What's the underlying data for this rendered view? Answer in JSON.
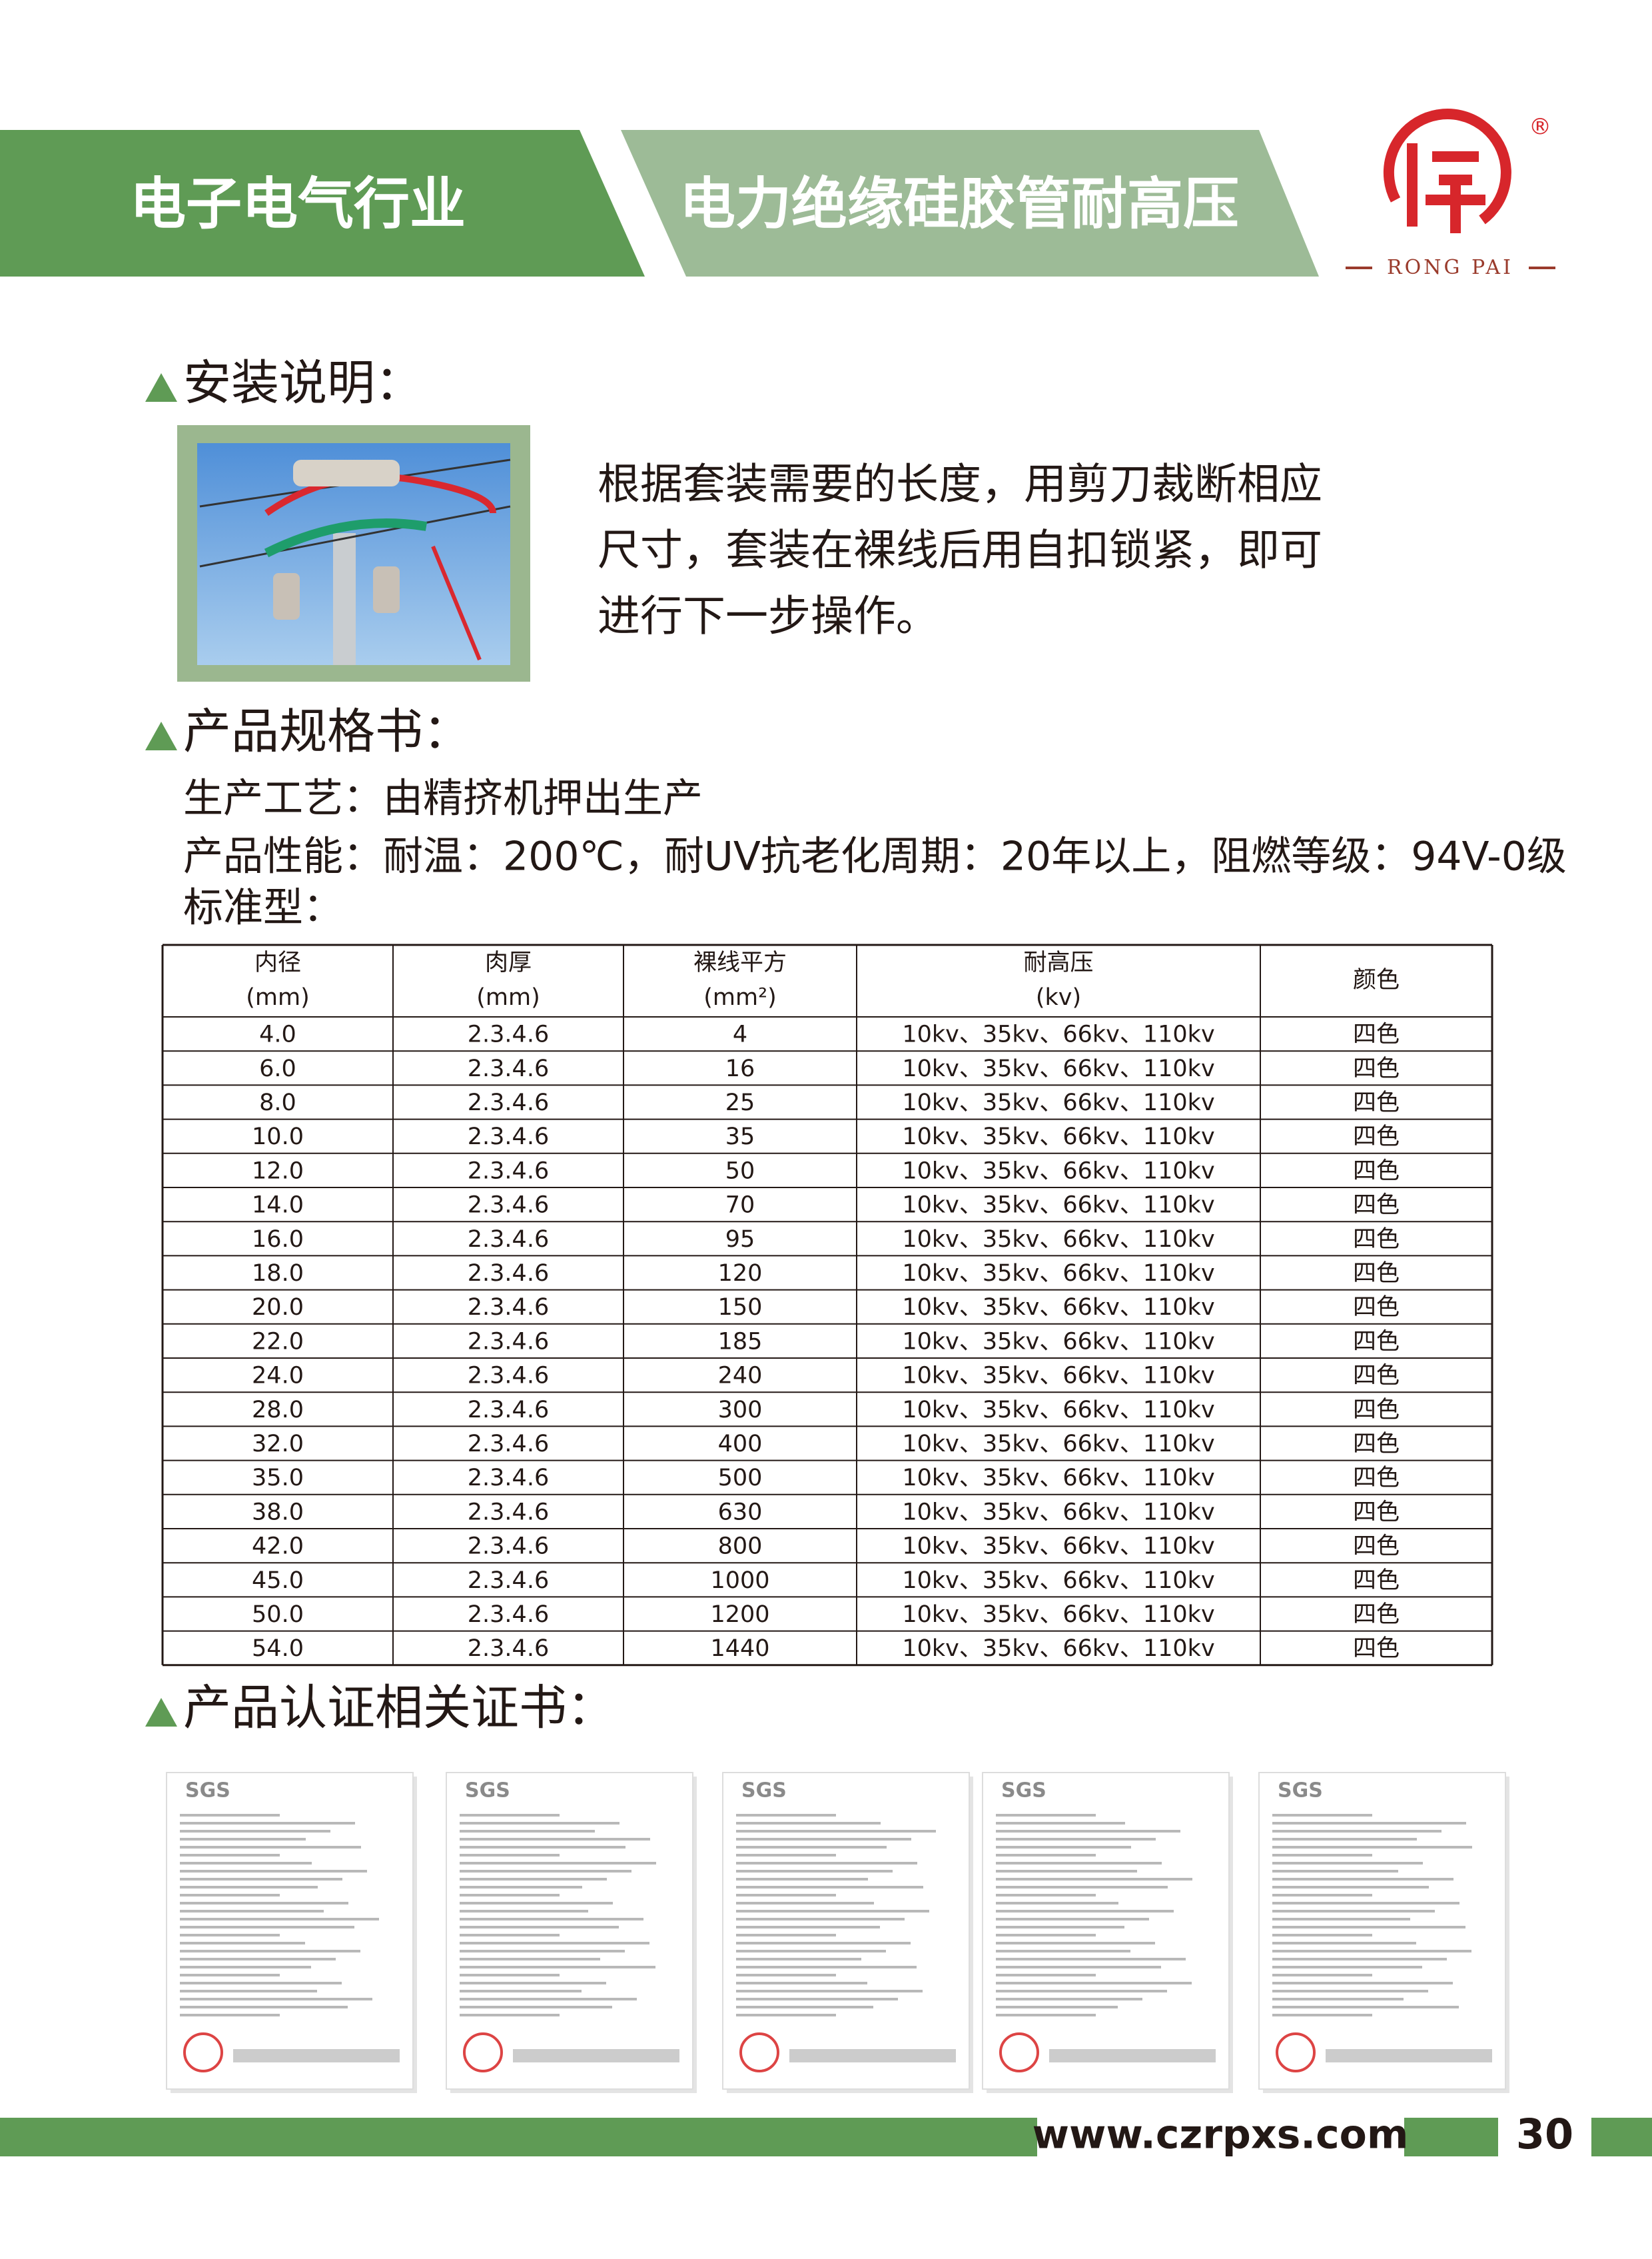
{
  "header": {
    "industry": "电子电气行业",
    "product": "电力绝缘硅胶管耐高压",
    "logo": {
      "mark": "®",
      "brand": "RONG PAI"
    }
  },
  "installation": {
    "heading": "安装说明：",
    "text_lines": [
      "根据套装需要的长度，用剪刀裁断相应",
      "尺寸，套装在裸线后用自扣锁紧，即可",
      "进行下一步操作。"
    ]
  },
  "specification": {
    "heading": "产品规格书：",
    "lines": [
      "生产工艺：由精挤机押出生产",
      "产品性能：耐温：200℃，耐UV抗老化周期：20年以上，阻燃等级：94V-0级",
      "标准型："
    ]
  },
  "table": {
    "header": [
      [
        "内径",
        "(mm)"
      ],
      [
        "肉厚",
        "(mm)"
      ],
      [
        "裸线平方",
        "(mm²)"
      ],
      [
        "耐高压",
        "(kv)"
      ],
      [
        "颜色"
      ]
    ],
    "rows": [
      [
        "4.0",
        "2.3.4.6",
        "4",
        "10kv、35kv、66kv、110kv",
        "四色"
      ],
      [
        "6.0",
        "2.3.4.6",
        "16",
        "10kv、35kv、66kv、110kv",
        "四色"
      ],
      [
        "8.0",
        "2.3.4.6",
        "25",
        "10kv、35kv、66kv、110kv",
        "四色"
      ],
      [
        "10.0",
        "2.3.4.6",
        "35",
        "10kv、35kv、66kv、110kv",
        "四色"
      ],
      [
        "12.0",
        "2.3.4.6",
        "50",
        "10kv、35kv、66kv、110kv",
        "四色"
      ],
      [
        "14.0",
        "2.3.4.6",
        "70",
        "10kv、35kv、66kv、110kv",
        "四色"
      ],
      [
        "16.0",
        "2.3.4.6",
        "95",
        "10kv、35kv、66kv、110kv",
        "四色"
      ],
      [
        "18.0",
        "2.3.4.6",
        "120",
        "10kv、35kv、66kv、110kv",
        "四色"
      ],
      [
        "20.0",
        "2.3.4.6",
        "150",
        "10kv、35kv、66kv、110kv",
        "四色"
      ],
      [
        "22.0",
        "2.3.4.6",
        "185",
        "10kv、35kv、66kv、110kv",
        "四色"
      ],
      [
        "24.0",
        "2.3.4.6",
        "240",
        "10kv、35kv、66kv、110kv",
        "四色"
      ],
      [
        "28.0",
        "2.3.4.6",
        "300",
        "10kv、35kv、66kv、110kv",
        "四色"
      ],
      [
        "32.0",
        "2.3.4.6",
        "400",
        "10kv、35kv、66kv、110kv",
        "四色"
      ],
      [
        "35.0",
        "2.3.4.6",
        "500",
        "10kv、35kv、66kv、110kv",
        "四色"
      ],
      [
        "38.0",
        "2.3.4.6",
        "630",
        "10kv、35kv、66kv、110kv",
        "四色"
      ],
      [
        "42.0",
        "2.3.4.6",
        "800",
        "10kv、35kv、66kv、110kv",
        "四色"
      ],
      [
        "45.0",
        "2.3.4.6",
        "1000",
        "10kv、35kv、66kv、110kv",
        "四色"
      ],
      [
        "50.0",
        "2.3.4.6",
        "1200",
        "10kv、35kv、66kv、110kv",
        "四色"
      ],
      [
        "54.0",
        "2.3.4.6",
        "1440",
        "10kv、35kv、66kv、110kv",
        "四色"
      ]
    ]
  },
  "certificates": {
    "heading": "产品认证相关证书：",
    "items": [
      "SGS",
      "SGS",
      "SGS",
      "SGS",
      "SGS"
    ]
  },
  "footer": {
    "website": "www.czrpxs.com",
    "page": "30"
  }
}
